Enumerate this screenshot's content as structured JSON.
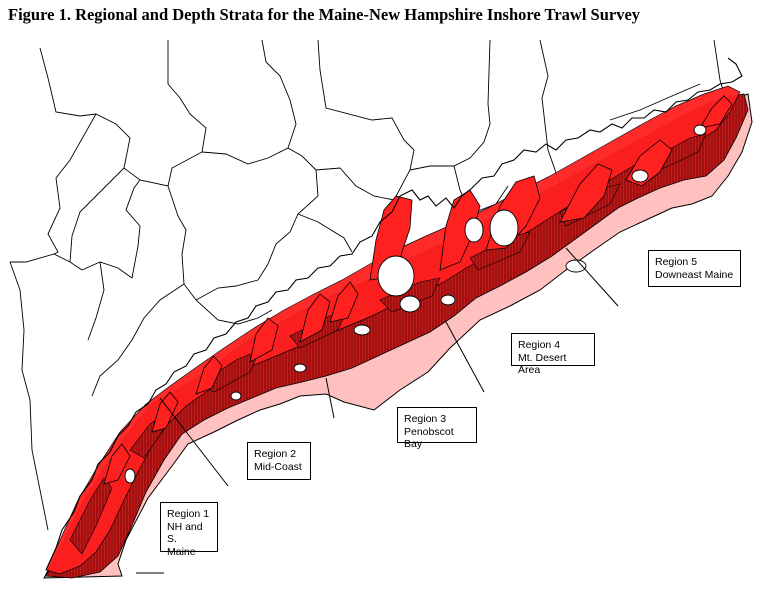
{
  "figure": {
    "title": "Figure 1.  Regional and Depth Strata for the Maine-New Hampshire Inshore Trawl Survey"
  },
  "colors": {
    "shallow_stratum": "#ff1f1f",
    "mid_stratum": "#b01515",
    "deep_stratum": "#ffb5b5",
    "outline": "#000000",
    "land": "#ffffff"
  },
  "regions": [
    {
      "id": 1,
      "title": "Region 1",
      "line2": "NH and S.",
      "line3": "Maine"
    },
    {
      "id": 2,
      "title": "Region 2",
      "line2": "Mid-Coast",
      "line3": ""
    },
    {
      "id": 3,
      "title": "Region 3",
      "line2": "Penobscot Bay",
      "line3": ""
    },
    {
      "id": 4,
      "title": "Region 4",
      "line2": "Mt. Desert Area",
      "line3": ""
    },
    {
      "id": 5,
      "title": "Region 5",
      "line2": "Downeast Maine",
      "line3": ""
    }
  ]
}
